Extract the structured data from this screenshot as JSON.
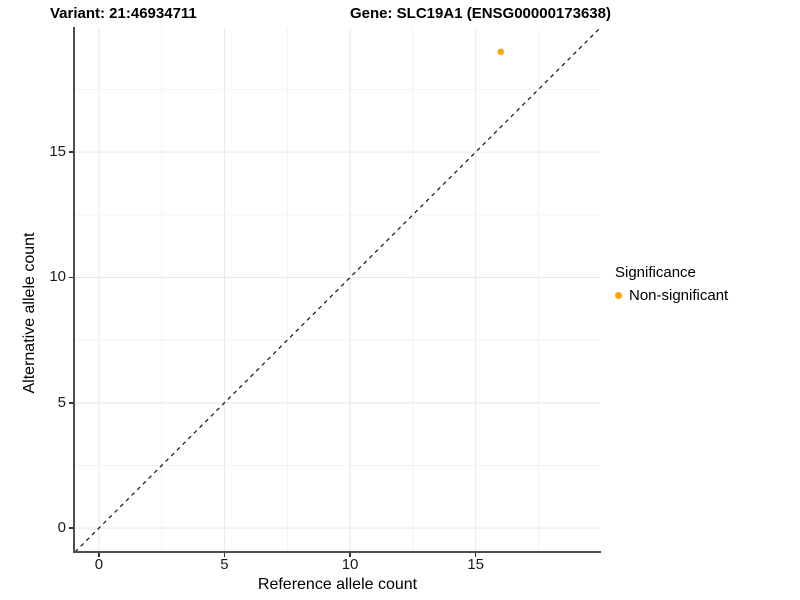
{
  "titles": {
    "variant": "Variant: 21:46934711",
    "gene": "Gene: SLC19A1 (ENSG00000173638)"
  },
  "chart_data": {
    "type": "scatter",
    "title_left": "Variant: 21:46934711",
    "title_right": "Gene: SLC19A1 (ENSG00000173638)",
    "xlabel": "Reference allele count",
    "ylabel": "Alternative allele count",
    "xlim": [
      -0.95,
      19.95
    ],
    "ylim": [
      -0.95,
      19.95
    ],
    "x_ticks": [
      0,
      5,
      10,
      15
    ],
    "y_ticks": [
      0,
      5,
      10,
      15
    ],
    "minor_grid_step": 2.5,
    "grid": true,
    "points": [
      {
        "x": 16,
        "y": 19,
        "series": "Non-significant"
      }
    ],
    "abline": {
      "slope": 1,
      "intercept": 0,
      "style": "dashed"
    },
    "legend": {
      "title": "Significance",
      "position": "right",
      "items": [
        {
          "label": "Non-significant",
          "color": "#FFA500"
        }
      ]
    },
    "colors": {
      "point": "#FFA500",
      "abline": "#111111",
      "axis_line": "#4d4d4d",
      "grid_major": "#e8e8e8",
      "grid_minor": "#f2f2f2",
      "background": "#ffffff"
    }
  }
}
